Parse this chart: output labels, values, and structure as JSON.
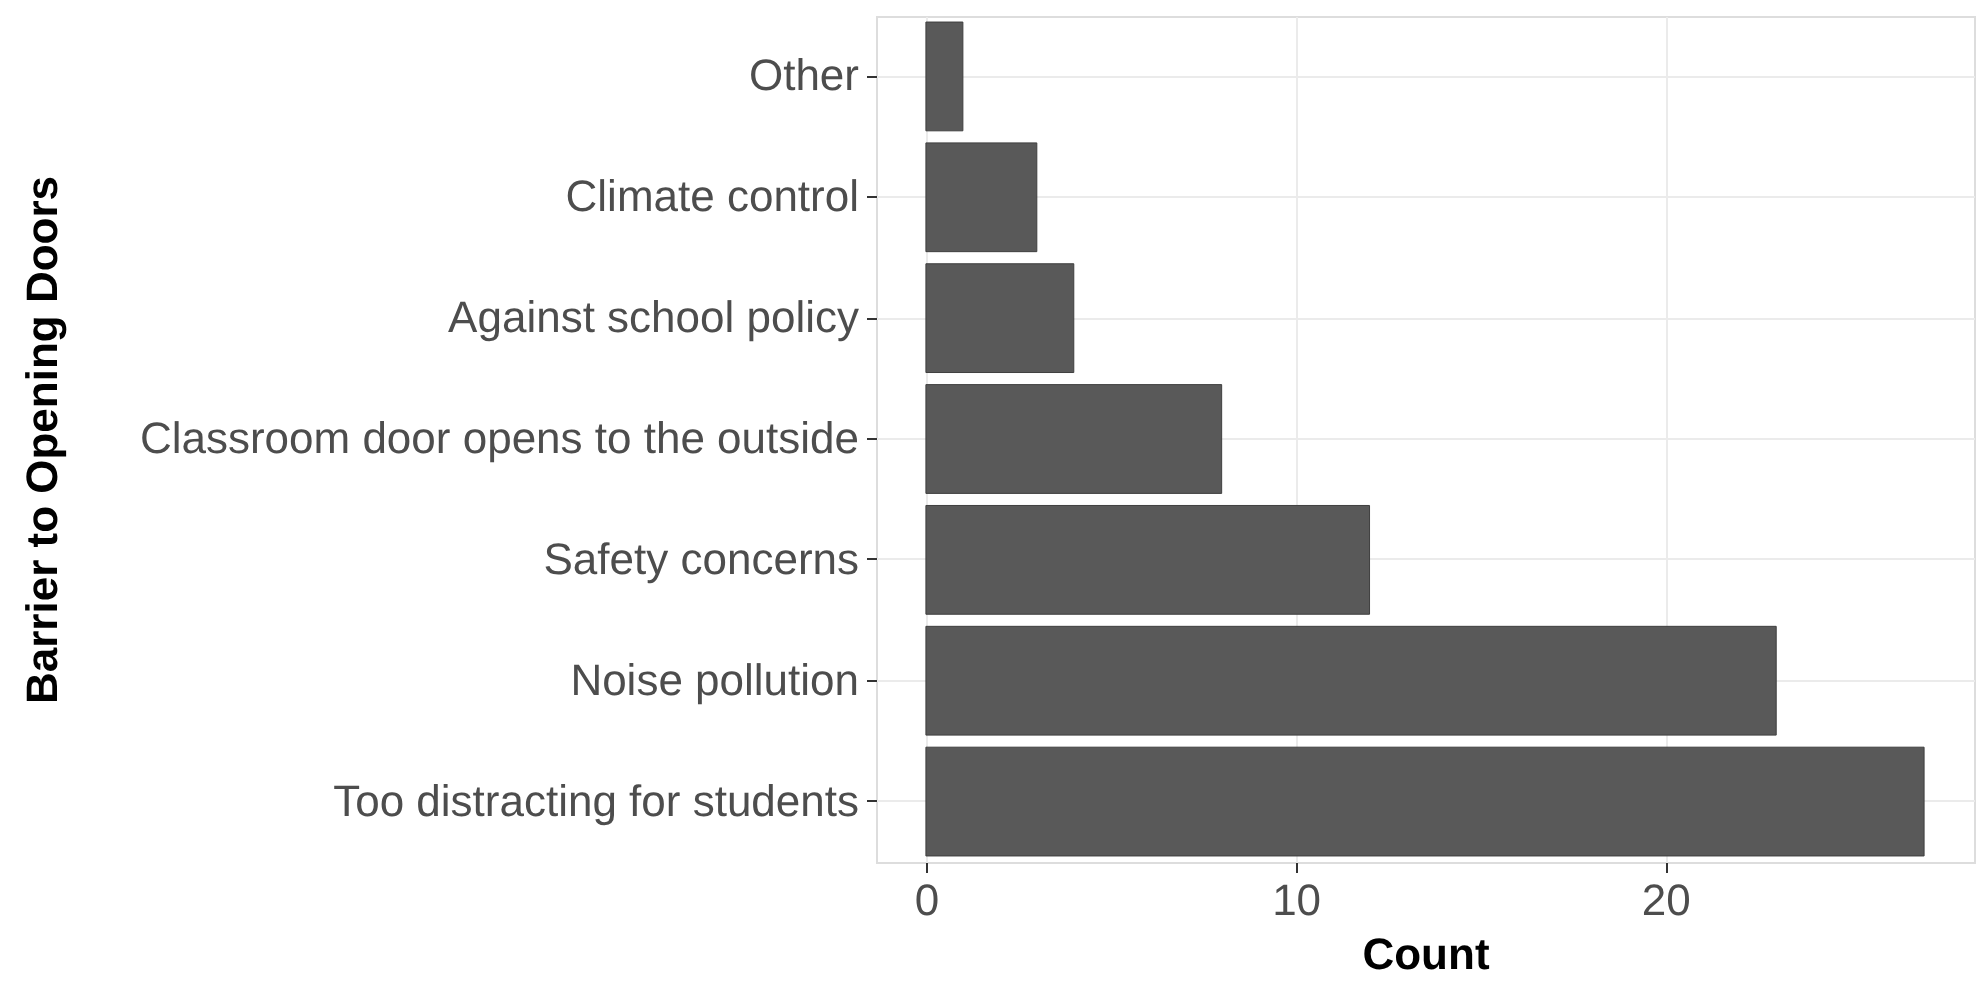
{
  "chart_data": {
    "type": "bar",
    "orientation": "horizontal",
    "xlabel": "Count",
    "ylabel": "Barrier to Opening Doors",
    "categories": [
      "Other",
      "Climate control",
      "Against school policy",
      "Classroom door opens to the outside",
      "Safety concerns",
      "Noise pollution",
      "Too distracting for students"
    ],
    "values": [
      1,
      3,
      4,
      8,
      12,
      23,
      27
    ],
    "color": "#595959",
    "xlim": [
      -1.35,
      28.35
    ],
    "xticks": [
      0,
      10,
      20
    ],
    "grid": true
  }
}
